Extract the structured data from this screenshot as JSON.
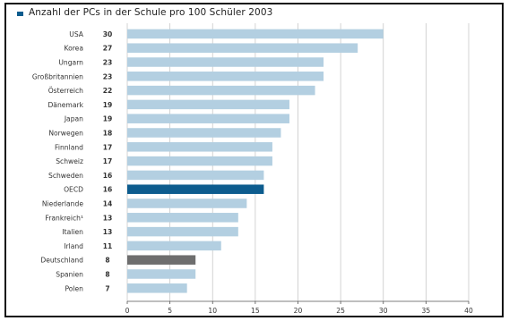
{
  "colors": {
    "bar": "#b3cfe1",
    "bar_oecd": "#0d5c8e",
    "bar_germany": "#6e6e6e",
    "grid": "#c8c8c8",
    "text": "#333333"
  },
  "chart_data": {
    "type": "bar",
    "orientation": "horizontal",
    "title": "Anzahl der PCs in der Schule pro 100 Schüler 2003",
    "xlabel": "",
    "ylabel": "",
    "xlim": [
      0,
      40
    ],
    "x_ticks": [
      "0",
      "5",
      "10",
      "15",
      "20",
      "25",
      "30",
      "35",
      "40"
    ],
    "grid": true,
    "legend": "none",
    "categories": [
      "USA",
      "Korea",
      "Ungarn",
      "Großbritannien",
      "Österreich",
      "Dänemark",
      "Japan",
      "Norwegen",
      "Finnland",
      "Schweiz",
      "Schweden",
      "OECD",
      "Niederlande",
      "Frankreich¹",
      "Italien",
      "Irland",
      "Deutschland",
      "Spanien",
      "Polen"
    ],
    "values": [
      30,
      27,
      23,
      23,
      22,
      19,
      19,
      18,
      17,
      17,
      16,
      16,
      14,
      13,
      13,
      11,
      8,
      8,
      7
    ],
    "value_labels": [
      "30",
      "27",
      "23",
      "23",
      "22",
      "19",
      "19",
      "18",
      "17",
      "17",
      "16",
      "16",
      "14",
      "13",
      "13",
      "11",
      "8",
      "8",
      "7"
    ],
    "highlight": {
      "OECD": "bar_oecd",
      "Deutschland": "bar_germany"
    }
  }
}
